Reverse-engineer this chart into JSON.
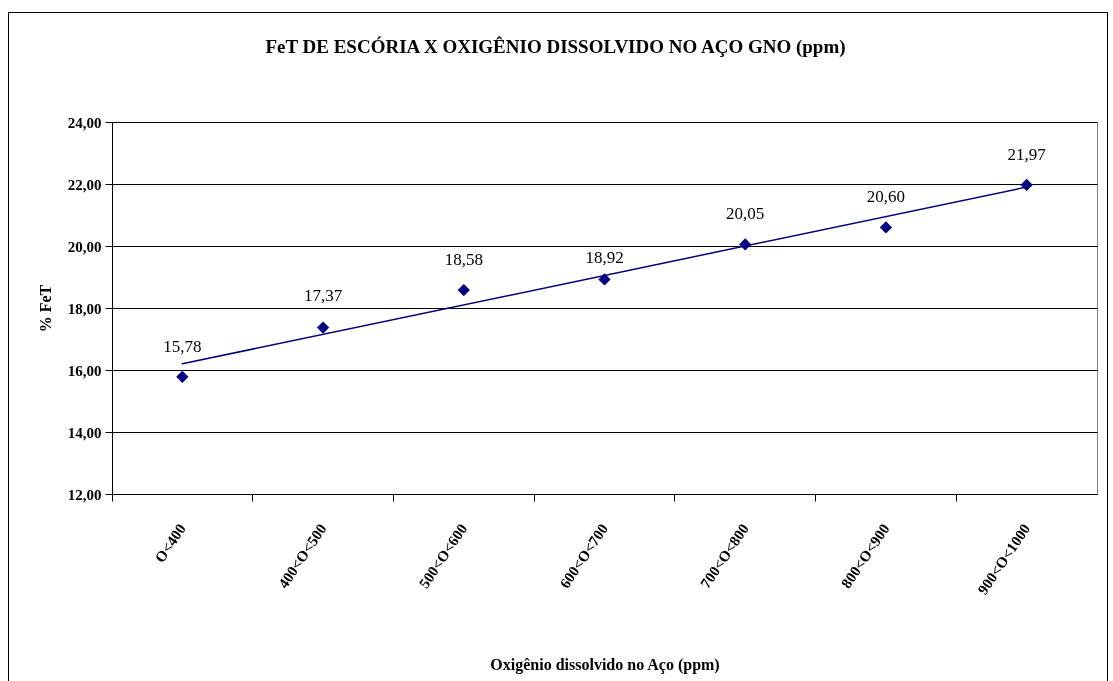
{
  "chart_data": {
    "type": "scatter",
    "title": "FeT DE ESCÓRIA X OXIGÊNIO DISSOLVIDO NO AÇO GNO (ppm)",
    "xlabel": "Oxigênio dissolvido no Aço (ppm)",
    "ylabel": "% FeT",
    "categories": [
      "O<400",
      "400<O<500",
      "500<O<600",
      "600<O<700",
      "700<O<800",
      "800<O<900",
      "900<O<1000"
    ],
    "series": [
      {
        "color": "#000080",
        "marker": "diamond",
        "values": [
          15.78,
          17.37,
          18.58,
          18.92,
          20.05,
          20.6,
          21.97
        ],
        "value_labels": [
          "15,78",
          "17,37",
          "18,58",
          "18,92",
          "20,05",
          "20,60",
          "21,97"
        ]
      },
      {
        "type": "line",
        "color": "#000080",
        "marker": "none",
        "line_style": "solid",
        "x": [
          "O<400",
          "900<O<1000"
        ],
        "values": [
          16.2,
          21.9
        ]
      }
    ],
    "ylim": [
      12,
      24
    ],
    "yticks": [
      {
        "value": 12,
        "label": "12,00"
      },
      {
        "value": 14,
        "label": "14,00"
      },
      {
        "value": 16,
        "label": "16,00"
      },
      {
        "value": 18,
        "label": "18,00"
      },
      {
        "value": 20,
        "label": "20,00"
      },
      {
        "value": 22,
        "label": "22,00"
      },
      {
        "value": 24,
        "label": "24,00"
      }
    ],
    "grid": "y"
  }
}
